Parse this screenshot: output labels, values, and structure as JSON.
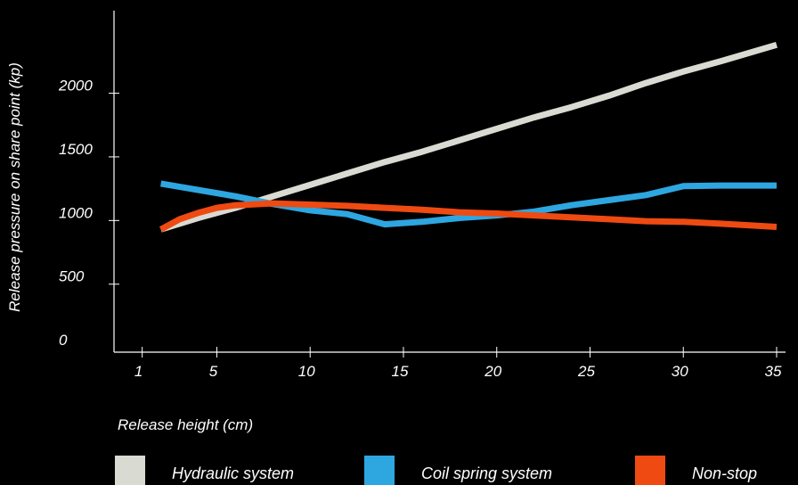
{
  "chart_data": {
    "type": "line",
    "xlabel": "Release height (cm)",
    "ylabel": "Release pressure on share point (kp)",
    "x_ticks": [
      1,
      5,
      10,
      15,
      20,
      25,
      30,
      35
    ],
    "y_ticks": [
      0,
      500,
      1000,
      1500,
      2000
    ],
    "xlim": [
      0.3,
      35
    ],
    "ylim": [
      -20,
      2550
    ],
    "legend_position": "bottom",
    "series": [
      {
        "name": "Hydraulic system",
        "color": "#d9dbd3",
        "x": [
          2,
          4,
          6,
          8,
          10,
          12,
          14,
          16,
          18,
          20,
          22,
          24,
          26,
          28,
          30,
          32,
          35
        ],
        "y": [
          930,
          1020,
          1100,
          1190,
          1280,
          1370,
          1460,
          1540,
          1630,
          1720,
          1810,
          1890,
          1980,
          2080,
          2170,
          2250,
          2380
        ]
      },
      {
        "name": "Coil spring system",
        "color": "#2ea6e0",
        "x": [
          2,
          4,
          6,
          8,
          10,
          12,
          14,
          16,
          18,
          20,
          22,
          24,
          26,
          28,
          30,
          32,
          35
        ],
        "y": [
          1290,
          1240,
          1190,
          1130,
          1080,
          1050,
          970,
          990,
          1020,
          1040,
          1070,
          1120,
          1160,
          1200,
          1270,
          1275,
          1275
        ]
      },
      {
        "name": "Non-stop",
        "color": "#ee4a12",
        "x": [
          2,
          3,
          4,
          5,
          6,
          8,
          10,
          12,
          14,
          16,
          18,
          20,
          22,
          24,
          26,
          28,
          30,
          32,
          35
        ],
        "y": [
          930,
          1010,
          1060,
          1100,
          1120,
          1135,
          1125,
          1115,
          1100,
          1085,
          1065,
          1055,
          1040,
          1025,
          1010,
          995,
          990,
          975,
          950
        ]
      }
    ]
  }
}
